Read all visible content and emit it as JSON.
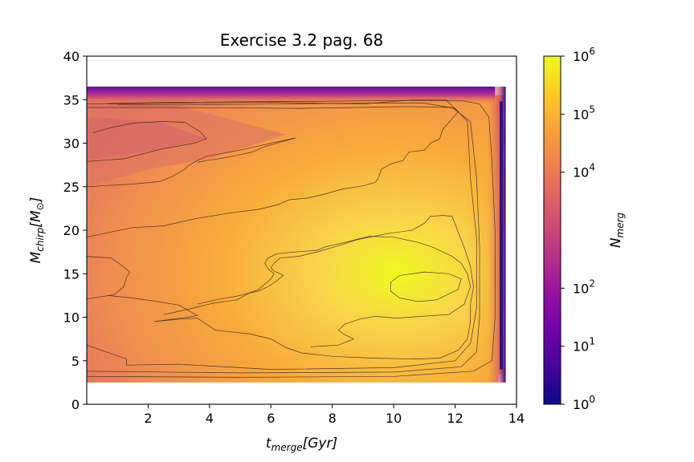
{
  "chart_data": {
    "type": "heatmap",
    "title": "Exercise 3.2 pag. 68",
    "xlabel": "t_merge[Gyr]",
    "xlabel_parts": {
      "main": "t",
      "sub": "merge",
      "rest": "[Gyr]"
    },
    "ylabel": "M_chirp[M_⊙]",
    "ylabel_parts": {
      "main": "M",
      "sub": "chirp",
      "rest": "[M",
      "rest_sub": "⊙",
      "close": "]"
    },
    "xlim": [
      0,
      14
    ],
    "ylim": [
      0,
      40
    ],
    "xticks": [
      2,
      4,
      6,
      8,
      10,
      12,
      14
    ],
    "yticks": [
      0,
      5,
      10,
      15,
      20,
      25,
      30,
      35,
      40
    ],
    "data_extent": {
      "x": [
        0,
        13.6
      ],
      "y": [
        2.5,
        36.5
      ]
    },
    "peak": {
      "x": 11.0,
      "y": 13.2,
      "value": 1000000
    },
    "colormap": "plasma",
    "colorbar": {
      "label": "N_merg",
      "label_parts": {
        "main": "N",
        "sub": "merg"
      },
      "scale": "log",
      "range": [
        1,
        1000000
      ],
      "ticks": [
        {
          "value": 1,
          "base": "10",
          "exp": "0"
        },
        {
          "value": 10,
          "base": "10",
          "exp": "1"
        },
        {
          "value": 100,
          "base": "10",
          "exp": "2"
        },
        {
          "value": 10000,
          "base": "10",
          "exp": "4"
        },
        {
          "value": 100000,
          "base": "10",
          "exp": "5"
        },
        {
          "value": 1000000,
          "base": "10",
          "exp": "6"
        }
      ]
    },
    "contours": [
      {
        "level": "outer",
        "points": [
          [
            0,
            2.6
          ],
          [
            13.4,
            2.6
          ],
          [
            13.5,
            36
          ],
          [
            0,
            36
          ]
        ]
      },
      {
        "level": 1,
        "points": [
          [
            0,
            34.5
          ],
          [
            2.6,
            34.7
          ],
          [
            7,
            34.8
          ],
          [
            10.5,
            34.9
          ],
          [
            12.2,
            34.9
          ],
          [
            12.8,
            34.5
          ],
          [
            13.1,
            33
          ],
          [
            13.2,
            28
          ],
          [
            13.3,
            20
          ],
          [
            13.3,
            10
          ],
          [
            13.2,
            5
          ],
          [
            12.6,
            3.8
          ],
          [
            10,
            3.2
          ],
          [
            5,
            3.1
          ],
          [
            0,
            3.2
          ]
        ]
      },
      {
        "level": 2,
        "points": [
          [
            0,
            34.1
          ],
          [
            2.6,
            34.1
          ],
          [
            7,
            34.0
          ],
          [
            10.5,
            34.2
          ],
          [
            11.9,
            34.1
          ],
          [
            12.5,
            32.5
          ],
          [
            12.7,
            26
          ],
          [
            12.8,
            18
          ],
          [
            12.8,
            10
          ],
          [
            12.7,
            6
          ],
          [
            12.2,
            4.3
          ],
          [
            10,
            3.7
          ],
          [
            5,
            3.6
          ],
          [
            0,
            3.8
          ]
        ]
      },
      {
        "level": 3,
        "points": [
          [
            1.0,
            34.4
          ],
          [
            3,
            34.4
          ],
          [
            6,
            34.5
          ],
          [
            9,
            34.6
          ],
          [
            11,
            34.6
          ],
          [
            12.0,
            34.0
          ],
          [
            12.4,
            32.5
          ],
          [
            12.5,
            26
          ],
          [
            12.7,
            19
          ],
          [
            12.7,
            11
          ],
          [
            12.5,
            7
          ],
          [
            12.0,
            5.0
          ],
          [
            10,
            4.2
          ],
          [
            6,
            4.0
          ],
          [
            3,
            4.6
          ],
          [
            1.3,
            4.5
          ],
          [
            1.3,
            5.2
          ],
          [
            0,
            6.8
          ]
        ]
      },
      {
        "level": 4,
        "points": [
          [
            0,
            27.9
          ],
          [
            1.2,
            28.2
          ],
          [
            2.4,
            29.3
          ],
          [
            3.5,
            30.0
          ],
          [
            3.9,
            30.5
          ],
          [
            3.7,
            31.3
          ],
          [
            3.2,
            32.4
          ],
          [
            2.5,
            32.5
          ],
          [
            1.5,
            32.3
          ],
          [
            0.8,
            31.8
          ],
          [
            0.2,
            31.2
          ]
        ]
      },
      {
        "level": 5,
        "points": [
          [
            0.7,
            34.5
          ],
          [
            3,
            34.6
          ],
          [
            6,
            34.7
          ],
          [
            9,
            34.5
          ],
          [
            10.7,
            35.0
          ],
          [
            11.7,
            35.0
          ],
          [
            12.1,
            33.6
          ],
          [
            11.6,
            31.6
          ],
          [
            11.5,
            30.5
          ],
          [
            11.2,
            30.0
          ],
          [
            11.0,
            29.2
          ],
          [
            10.5,
            29.0
          ],
          [
            10.3,
            28.0
          ],
          [
            9.9,
            27.6
          ],
          [
            9.6,
            27.0
          ],
          [
            9.5,
            26.0
          ],
          [
            9.4,
            25.5
          ],
          [
            9.0,
            25.1
          ],
          [
            8.3,
            24.7
          ],
          [
            7.7,
            24.1
          ],
          [
            7.2,
            23.7
          ],
          [
            6.6,
            23.5
          ],
          [
            6.2,
            22.9
          ],
          [
            5.6,
            22.4
          ],
          [
            4.7,
            22.0
          ],
          [
            3.5,
            21.3
          ],
          [
            2.5,
            20.5
          ],
          [
            1.5,
            20.3
          ],
          [
            0.8,
            19.8
          ],
          [
            0,
            19.2
          ]
        ]
      },
      {
        "level": 6,
        "points": [
          [
            0,
            25.0
          ],
          [
            1.5,
            25.3
          ],
          [
            2.4,
            25.6
          ],
          [
            2.8,
            26.2
          ],
          [
            3.2,
            27.0
          ],
          [
            3.3,
            27.4
          ],
          [
            3.6,
            28.0
          ],
          [
            3.9,
            28.5
          ],
          [
            5,
            29.2
          ],
          [
            6,
            30.0
          ],
          [
            6.8,
            30.6
          ],
          [
            6.4,
            30.2
          ],
          [
            5.8,
            29.6
          ],
          [
            5.4,
            29.0
          ],
          [
            4.9,
            28.6
          ],
          [
            4.3,
            28.2
          ],
          [
            3.9,
            28.0
          ],
          [
            3.6,
            27.8
          ]
        ]
      },
      {
        "level": 7,
        "points": [
          [
            0,
            17.0
          ],
          [
            0.8,
            16.8
          ],
          [
            1.2,
            15.8
          ],
          [
            1.4,
            15.2
          ],
          [
            1.3,
            14.6
          ],
          [
            1.2,
            13.5
          ],
          [
            0.9,
            12.6
          ],
          [
            0,
            12.1
          ]
        ]
      },
      {
        "level": 8,
        "points": [
          [
            0.7,
            12.5
          ],
          [
            1.5,
            12.2
          ],
          [
            2.3,
            11.8
          ],
          [
            3.0,
            11.4
          ],
          [
            3.6,
            10.2
          ],
          [
            3.3,
            10.0
          ],
          [
            2.6,
            9.7
          ],
          [
            2.2,
            9.5
          ],
          [
            3.1,
            9.8
          ],
          [
            3.6,
            9.9
          ],
          [
            4.2,
            8.5
          ],
          [
            5.3,
            8.1
          ],
          [
            6.0,
            7.5
          ],
          [
            6.5,
            6.5
          ],
          [
            7.0,
            5.9
          ],
          [
            8.0,
            5.5
          ],
          [
            9.3,
            5.3
          ],
          [
            10.7,
            5.2
          ],
          [
            11.5,
            5.3
          ],
          [
            12.1,
            6.2
          ],
          [
            12.4,
            7.5
          ],
          [
            12.5,
            9.5
          ],
          [
            12.5,
            11.5
          ],
          [
            12.6,
            13.5
          ],
          [
            12.5,
            15.8
          ],
          [
            12.3,
            18.0
          ],
          [
            12.1,
            19.8
          ],
          [
            11.9,
            21.6
          ],
          [
            11.6,
            21.7
          ],
          [
            11.2,
            21.6
          ],
          [
            11.0,
            20.8
          ],
          [
            10.6,
            20.0
          ],
          [
            9.8,
            19.6
          ],
          [
            8.8,
            18.9
          ],
          [
            8.1,
            18.1
          ],
          [
            7.5,
            17.5
          ],
          [
            6.9,
            17.0
          ],
          [
            6.3,
            16.8
          ],
          [
            6.1,
            16.2
          ],
          [
            6.0,
            15.7
          ],
          [
            6.1,
            15.3
          ],
          [
            6.3,
            15.0
          ],
          [
            6.4,
            14.8
          ],
          [
            6.2,
            14.2
          ],
          [
            5.9,
            13.5
          ],
          [
            5.6,
            13.0
          ],
          [
            5.3,
            12.8
          ],
          [
            5.0,
            12.5
          ],
          [
            4.2,
            12.0
          ],
          [
            3.6,
            11.5
          ]
        ]
      },
      {
        "level": 9,
        "points": [
          [
            9.9,
            14.0
          ],
          [
            10.2,
            14.8
          ],
          [
            11.0,
            15.2
          ],
          [
            11.8,
            15.0
          ],
          [
            12.2,
            14.4
          ],
          [
            12.1,
            13.2
          ],
          [
            11.4,
            12.0
          ],
          [
            10.8,
            11.8
          ],
          [
            10.2,
            12.2
          ],
          [
            9.9,
            13.0
          ]
        ]
      },
      {
        "level": 10,
        "points": [
          [
            7.3,
            6.6
          ],
          [
            8.2,
            6.8
          ],
          [
            8.7,
            7.5
          ],
          [
            8.4,
            8.0
          ],
          [
            8.2,
            8.5
          ],
          [
            8.4,
            9.2
          ],
          [
            8.9,
            9.8
          ],
          [
            9.4,
            10.1
          ],
          [
            10.1,
            9.9
          ],
          [
            10.9,
            10.1
          ],
          [
            11.8,
            10.3
          ],
          [
            12.3,
            11.5
          ],
          [
            12.5,
            13.5
          ],
          [
            12.4,
            15.0
          ],
          [
            12.2,
            16.2
          ],
          [
            11.9,
            17.0
          ],
          [
            11.3,
            18.0
          ],
          [
            10.8,
            18.6
          ],
          [
            10.0,
            19.2
          ],
          [
            9.2,
            19.3
          ],
          [
            8.4,
            18.6
          ],
          [
            7.8,
            18.1
          ],
          [
            7.5,
            17.7
          ],
          [
            7.2,
            17.6
          ],
          [
            6.8,
            17.5
          ],
          [
            6.2,
            17.3
          ],
          [
            5.9,
            16.8
          ],
          [
            5.8,
            16.2
          ],
          [
            5.9,
            15.6
          ],
          [
            6.1,
            15.0
          ],
          [
            6.0,
            14.4
          ],
          [
            5.8,
            13.8
          ],
          [
            5.6,
            13.2
          ],
          [
            5.3,
            12.8
          ],
          [
            4.9,
            12.0
          ],
          [
            4.1,
            11.6
          ],
          [
            3.4,
            11.0
          ],
          [
            2.9,
            10.6
          ],
          [
            2.5,
            10.3
          ]
        ]
      }
    ]
  }
}
